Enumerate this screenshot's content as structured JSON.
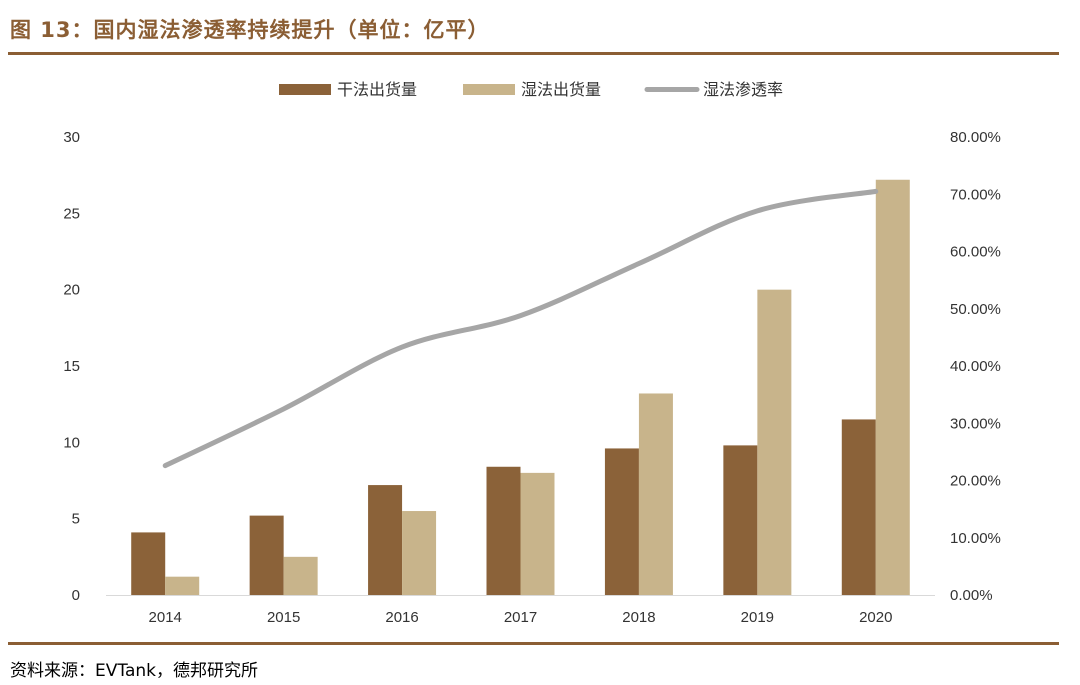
{
  "title": "图 13：国内湿法渗透率持续提升（单位：亿平）",
  "source": "资料来源：EVTank，德邦研究所",
  "colors": {
    "dry": "#8b6239",
    "wet": "#c8b48b",
    "rate": "#a6a6a6",
    "accent": "#8b5e34"
  },
  "chart_data": {
    "type": "bar",
    "title": "国内湿法渗透率持续提升（单位：亿平）",
    "categories": [
      "2014",
      "2015",
      "2016",
      "2017",
      "2018",
      "2019",
      "2020"
    ],
    "series": [
      {
        "name": "干法出货量",
        "kind": "bar",
        "axis": "left",
        "values": [
          4.1,
          5.2,
          7.2,
          8.4,
          9.6,
          9.8,
          11.5
        ]
      },
      {
        "name": "湿法出货量",
        "kind": "bar",
        "axis": "left",
        "values": [
          1.2,
          2.5,
          5.5,
          8.0,
          13.2,
          20.0,
          27.2
        ]
      },
      {
        "name": "湿法渗透率",
        "kind": "line",
        "axis": "right",
        "values": [
          22.6,
          32.5,
          43.3,
          48.8,
          57.9,
          67.1,
          70.5
        ]
      }
    ],
    "y_left": {
      "min": 0,
      "max": 30,
      "ticks": [
        "0",
        "5",
        "10",
        "15",
        "20",
        "25",
        "30"
      ]
    },
    "y_right": {
      "min": 0,
      "max": 80,
      "ticks": [
        "0.00%",
        "10.00%",
        "20.00%",
        "30.00%",
        "40.00%",
        "50.00%",
        "60.00%",
        "70.00%",
        "80.00%"
      ]
    },
    "legend_position": "top-center",
    "grid": false
  }
}
